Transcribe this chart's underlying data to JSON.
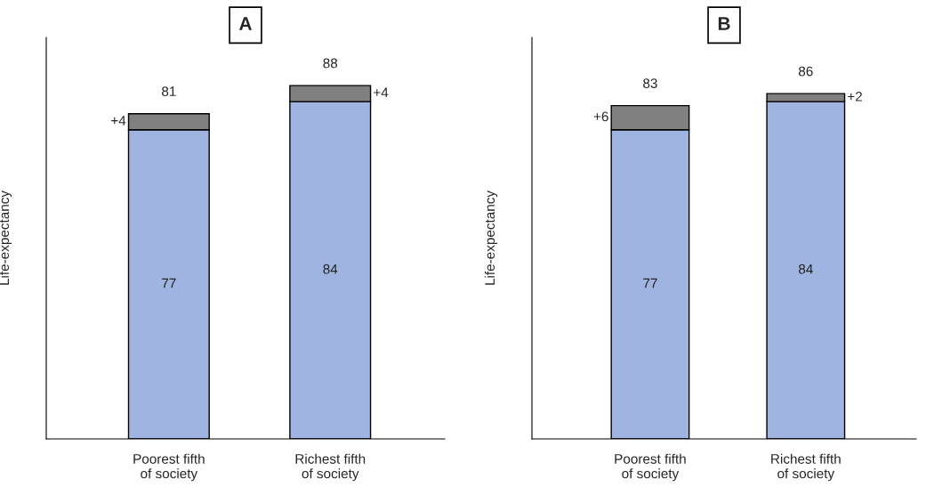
{
  "chart_data": [
    {
      "type": "bar",
      "title": "A",
      "ylabel": "Life-expectancy",
      "stacked": true,
      "ylim": [
        0,
        100
      ],
      "tick_labels": "x",
      "grid": false,
      "legend": false,
      "categories": [
        "Poorest fifth\nof society",
        "Richest fifth\nof society"
      ],
      "series": [
        {
          "color": "#9fb4e0",
          "values": [
            77,
            84
          ],
          "value_labels": [
            "77",
            "84"
          ]
        },
        {
          "color": "#808080",
          "values": [
            4,
            4
          ],
          "value_labels": [
            "+4",
            "+4"
          ]
        }
      ],
      "totals": [
        "81",
        "88"
      ]
    },
    {
      "type": "bar",
      "title": "B",
      "ylabel": "Life-expectancy",
      "stacked": true,
      "ylim": [
        0,
        100
      ],
      "tick_labels": "x",
      "grid": false,
      "legend": false,
      "categories": [
        "Poorest fifth\nof society",
        "Richest fifth\nof society"
      ],
      "series": [
        {
          "color": "#9fb4e0",
          "values": [
            77,
            84
          ],
          "value_labels": [
            "77",
            "84"
          ]
        },
        {
          "color": "#808080",
          "values": [
            6,
            2
          ],
          "value_labels": [
            "+6",
            "+2"
          ]
        }
      ],
      "totals": [
        "83",
        "86"
      ]
    }
  ]
}
